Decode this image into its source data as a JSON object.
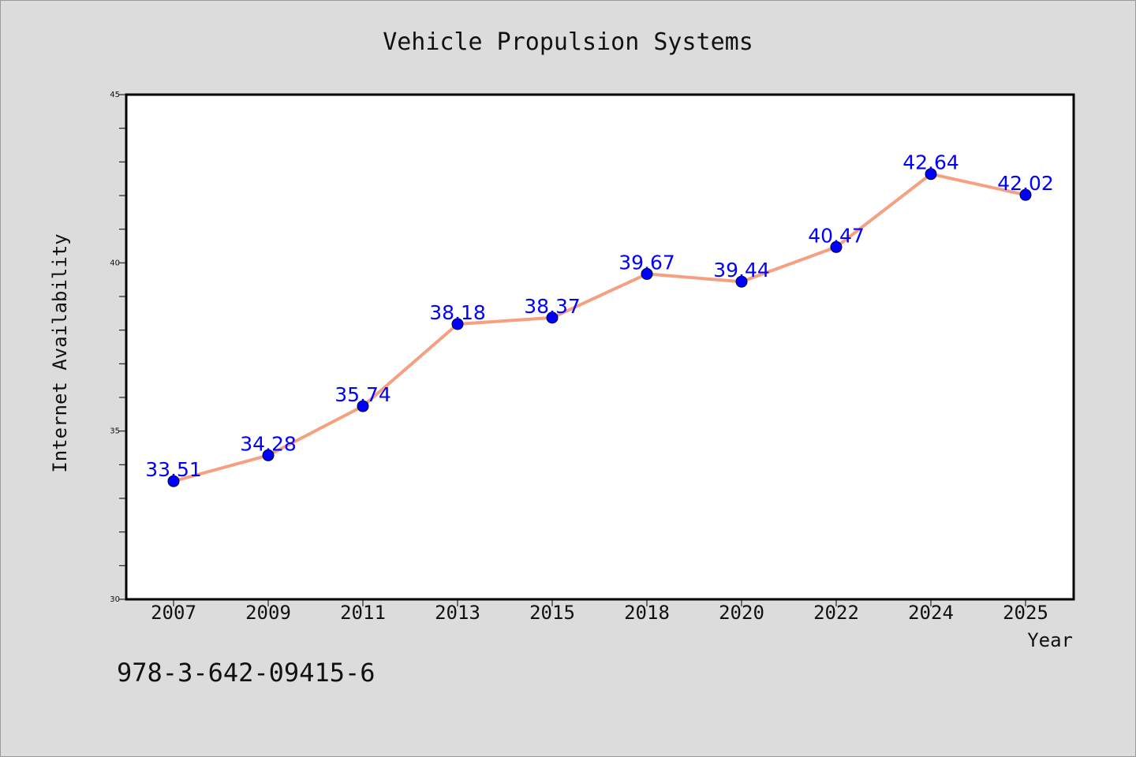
{
  "chart_data": {
    "type": "line",
    "title": "Vehicle Propulsion Systems",
    "xlabel": "Year",
    "ylabel": "Internet Availability",
    "categories": [
      "2007",
      "2009",
      "2011",
      "2013",
      "2015",
      "2018",
      "2020",
      "2022",
      "2024",
      "2025"
    ],
    "series": [
      {
        "values": [
          33.51,
          34.28,
          35.74,
          38.18,
          38.37,
          39.67,
          39.44,
          40.47,
          42.64,
          42.02
        ],
        "value_labels": [
          "33.51",
          "34.28",
          "35.74",
          "38.18",
          "38.37",
          "39.67",
          "39.44",
          "40.47",
          "42.64",
          "42.02"
        ],
        "line_color": "#f4a081",
        "marker_color": "#0000ff"
      }
    ],
    "ylim": [
      30,
      45
    ],
    "yticks": [
      "30",
      "35",
      "40",
      "45"
    ],
    "grid": false,
    "legend": "none"
  },
  "footer_text": "978-3-642-09415-6",
  "colors": {
    "background": "#dcdcdc",
    "plot_background": "#ffffff",
    "data_label": "#0000ff"
  }
}
